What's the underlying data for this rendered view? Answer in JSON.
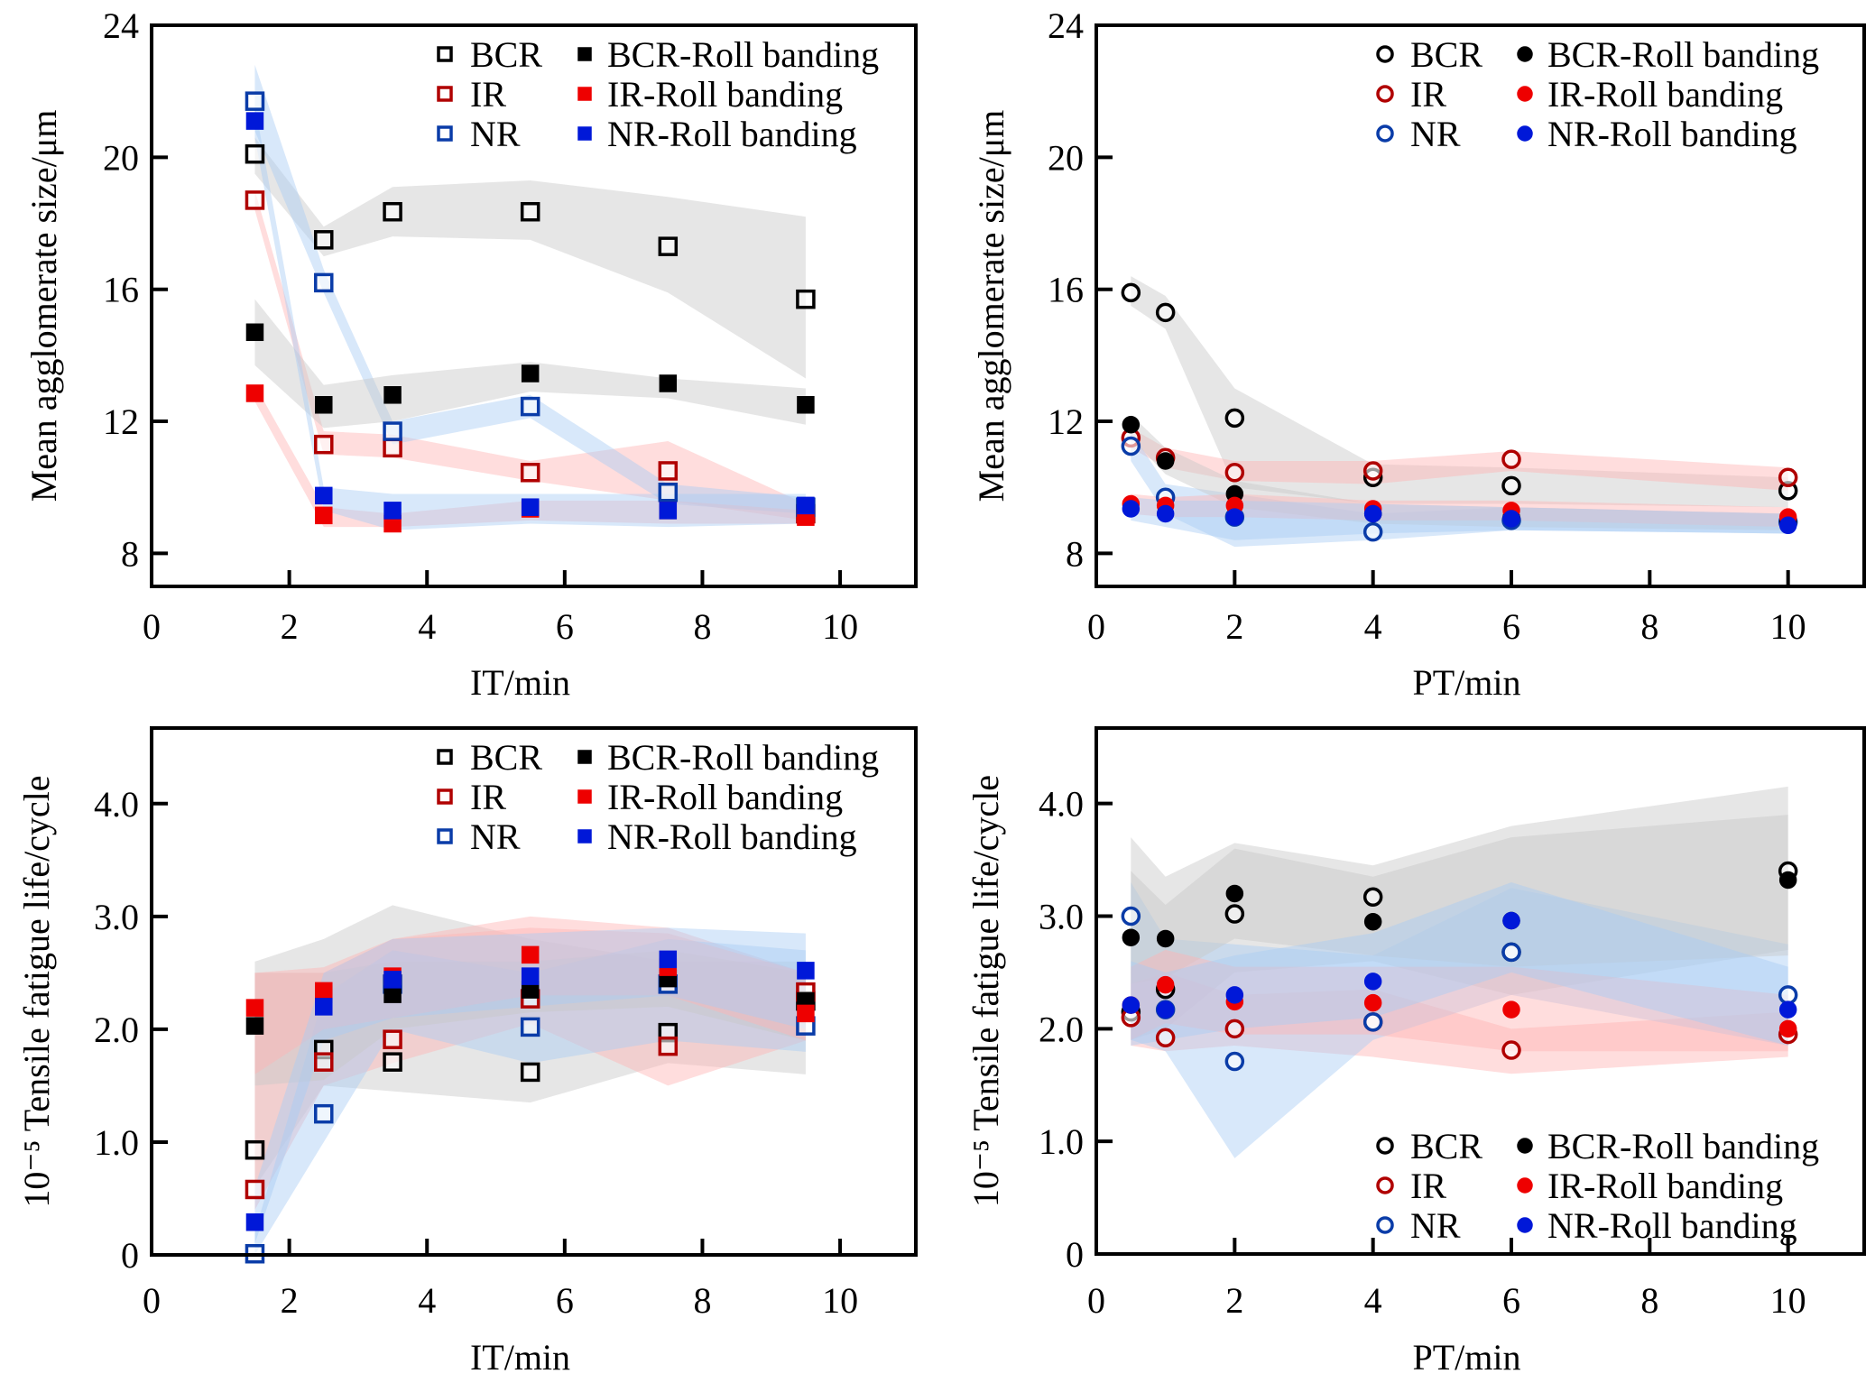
{
  "legend_labels": {
    "BCR": "BCR",
    "IR": "IR",
    "NR": "NR",
    "BCR-RB": "BCR-Roll banding",
    "IR-RB": "IR-Roll banding",
    "NR-RB": "NR-Roll banding"
  },
  "series_style": {
    "BCR": {
      "color": "#000000",
      "band": "#c8c8c8",
      "filled": false
    },
    "IR": {
      "color": "#b00000",
      "band": "#ffb4b4",
      "filled": false
    },
    "NR": {
      "color": "#0a3ca8",
      "band": "#a8cdf5",
      "filled": false
    },
    "BCR-RB": {
      "color": "#000000",
      "band": "#c8c8c8",
      "filled": true
    },
    "IR-RB": {
      "color": "#ee0000",
      "band": "#ffb4b4",
      "filled": true
    },
    "NR-RB": {
      "color": "#0018d8",
      "band": "#a8cdf5",
      "filled": true
    }
  },
  "chart_data": [
    {
      "id": "top-left",
      "type": "scatter",
      "marker": "square",
      "title": "",
      "xlabel": "IT/min",
      "ylabel": "Mean agglomerate size/μm",
      "xlim": [
        0,
        11.1
      ],
      "ylim": [
        7,
        24
      ],
      "xticks": [
        0,
        2,
        4,
        6,
        8,
        10
      ],
      "yticks": [
        8,
        12,
        16,
        20,
        24
      ],
      "ytick_labels": [
        "8",
        "12",
        "16",
        "20",
        "24"
      ],
      "legend_position": "top-right",
      "grid": false,
      "x": [
        1.5,
        2.5,
        3.5,
        5.5,
        7.5,
        9.5
      ],
      "series": [
        {
          "name": "BCR",
          "values": [
            20.1,
            17.5,
            18.35,
            18.35,
            17.3,
            15.7
          ],
          "band_low": [
            19.5,
            17.0,
            17.6,
            17.5,
            15.9,
            13.3
          ],
          "band_high": [
            20.6,
            17.9,
            19.1,
            19.3,
            18.8,
            18.2
          ]
        },
        {
          "name": "IR",
          "values": [
            18.7,
            11.3,
            11.2,
            10.45,
            10.5,
            9.2
          ],
          "band_low": [
            18.4,
            11.0,
            10.9,
            10.2,
            9.6,
            9.0
          ],
          "band_high": [
            19.0,
            11.7,
            11.6,
            10.8,
            11.4,
            9.5
          ]
        },
        {
          "name": "NR",
          "values": [
            21.7,
            16.2,
            11.7,
            12.45,
            9.85,
            9.4
          ],
          "band_low": [
            20.8,
            15.9,
            11.3,
            12.1,
            9.5,
            9.2
          ],
          "band_high": [
            22.8,
            16.6,
            12.0,
            12.8,
            10.1,
            9.7
          ]
        },
        {
          "name": "BCR-RB",
          "values": [
            14.7,
            12.5,
            12.8,
            13.45,
            13.15,
            12.5
          ],
          "band_low": [
            13.7,
            11.8,
            12.0,
            12.9,
            12.7,
            11.9
          ],
          "band_high": [
            15.7,
            13.1,
            13.4,
            13.8,
            13.3,
            13.0
          ]
        },
        {
          "name": "IR-RB",
          "values": [
            12.85,
            9.15,
            8.9,
            9.35,
            9.3,
            9.1
          ],
          "band_low": [
            12.6,
            8.8,
            8.8,
            9.0,
            8.9,
            8.9
          ],
          "band_high": [
            13.1,
            9.4,
            9.2,
            9.6,
            9.6,
            9.3
          ]
        },
        {
          "name": "NR-RB",
          "values": [
            21.1,
            9.75,
            9.3,
            9.4,
            9.3,
            9.45
          ],
          "band_low": [
            20.6,
            9.3,
            8.7,
            8.9,
            8.8,
            8.9
          ],
          "band_high": [
            21.6,
            10.0,
            9.8,
            9.8,
            9.8,
            9.8
          ]
        }
      ]
    },
    {
      "id": "top-right",
      "type": "scatter",
      "marker": "circle",
      "title": "",
      "xlabel": "PT/min",
      "ylabel": "Mean agglomerate size/μm",
      "xlim": [
        0,
        11.1
      ],
      "ylim": [
        7,
        24
      ],
      "xticks": [
        0,
        2,
        4,
        6,
        8,
        10
      ],
      "yticks": [
        8,
        12,
        16,
        20,
        24
      ],
      "ytick_labels": [
        "8",
        "12",
        "16",
        "20",
        "24"
      ],
      "legend_position": "top-right",
      "grid": false,
      "x": [
        0.5,
        1,
        2,
        4,
        6,
        10
      ],
      "series": [
        {
          "name": "BCR",
          "values": [
            15.9,
            15.3,
            12.1,
            10.3,
            10.05,
            9.9
          ],
          "band_low": [
            15.5,
            14.8,
            10.0,
            9.5,
            9.5,
            9.4
          ],
          "band_high": [
            16.4,
            15.8,
            13.0,
            10.7,
            10.6,
            10.3
          ]
        },
        {
          "name": "IR",
          "values": [
            11.5,
            10.9,
            10.45,
            10.5,
            10.85,
            10.3
          ],
          "band_low": [
            11.2,
            10.6,
            10.2,
            10.1,
            10.5,
            9.9
          ],
          "band_high": [
            11.8,
            11.2,
            10.8,
            10.8,
            11.1,
            10.6
          ]
        },
        {
          "name": "NR",
          "values": [
            11.25,
            9.7,
            9.1,
            8.65,
            9.0,
            8.95
          ],
          "band_low": [
            10.8,
            9.2,
            8.2,
            8.4,
            8.7,
            8.6
          ],
          "band_high": [
            11.7,
            10.1,
            9.8,
            9.2,
            9.4,
            9.2
          ]
        },
        {
          "name": "BCR-RB",
          "values": [
            11.9,
            10.8,
            9.8,
            9.2,
            9.1,
            8.95
          ],
          "band_low": [
            11.5,
            10.4,
            9.4,
            8.9,
            8.8,
            8.7
          ],
          "band_high": [
            12.2,
            11.2,
            10.2,
            9.5,
            9.4,
            9.2
          ]
        },
        {
          "name": "IR-RB",
          "values": [
            9.5,
            9.45,
            9.45,
            9.35,
            9.3,
            9.1
          ],
          "band_low": [
            9.2,
            9.1,
            9.1,
            9.0,
            9.0,
            8.8
          ],
          "band_high": [
            9.8,
            9.7,
            9.8,
            9.6,
            9.6,
            9.4
          ]
        },
        {
          "name": "NR-RB",
          "values": [
            9.35,
            9.2,
            9.1,
            9.2,
            9.05,
            8.85
          ],
          "band_low": [
            9.0,
            8.8,
            8.4,
            8.6,
            8.7,
            8.6
          ],
          "band_high": [
            9.7,
            9.6,
            9.6,
            9.5,
            9.4,
            9.2
          ]
        }
      ]
    },
    {
      "id": "bottom-left",
      "type": "scatter",
      "marker": "square",
      "title": "",
      "xlabel": "IT/min",
      "ylabel": "10⁻⁵ Tensile fatigue life/cycle",
      "xlim": [
        0,
        11.1
      ],
      "ylim": [
        0,
        4.67
      ],
      "xticks": [
        0,
        2,
        4,
        6,
        8,
        10
      ],
      "yticks": [
        0,
        1,
        2,
        3,
        4
      ],
      "ytick_labels": [
        "0",
        "1.0",
        "2.0",
        "3.0",
        "4.0"
      ],
      "legend_position": "top-right",
      "grid": false,
      "x": [
        1.5,
        2.5,
        3.5,
        5.5,
        7.5,
        9.5
      ],
      "series": [
        {
          "name": "BCR",
          "values": [
            0.93,
            1.82,
            1.71,
            1.62,
            1.97,
            2.25
          ],
          "band_low": [
            0.6,
            1.5,
            1.45,
            1.35,
            1.7,
            1.6
          ],
          "band_high": [
            2.6,
            2.8,
            3.1,
            2.8,
            2.6,
            2.6
          ]
        },
        {
          "name": "IR",
          "values": [
            0.58,
            1.71,
            1.91,
            2.27,
            1.85,
            2.33
          ],
          "band_low": [
            0.4,
            1.5,
            1.7,
            2.05,
            1.5,
            1.9
          ],
          "band_high": [
            2.5,
            2.5,
            2.8,
            3.0,
            2.9,
            2.5
          ]
        },
        {
          "name": "NR",
          "values": [
            0.01,
            1.25,
            2.4,
            2.02,
            2.4,
            2.03
          ],
          "band_low": [
            0.0,
            1.0,
            2.0,
            1.7,
            1.9,
            1.8
          ],
          "band_high": [
            0.2,
            2.3,
            2.7,
            2.5,
            2.8,
            2.7
          ]
        },
        {
          "name": "BCR-RB",
          "values": [
            2.03,
            2.31,
            2.31,
            2.35,
            2.45,
            2.25
          ],
          "band_low": [
            1.5,
            1.55,
            2.0,
            2.15,
            2.2,
            1.9
          ],
          "band_high": [
            2.5,
            2.5,
            2.6,
            2.6,
            2.7,
            2.5
          ]
        },
        {
          "name": "IR-RB",
          "values": [
            2.19,
            2.34,
            2.47,
            2.66,
            2.55,
            2.14
          ],
          "band_low": [
            1.6,
            2.0,
            2.1,
            2.3,
            2.3,
            1.9
          ],
          "band_high": [
            2.5,
            2.55,
            2.8,
            2.9,
            2.85,
            2.5
          ]
        },
        {
          "name": "NR-RB",
          "values": [
            0.29,
            2.2,
            2.44,
            2.47,
            2.62,
            2.52
          ],
          "band_low": [
            0.1,
            1.9,
            2.1,
            2.2,
            2.3,
            2.0
          ],
          "band_high": [
            0.6,
            2.5,
            2.8,
            2.85,
            2.9,
            2.85
          ]
        }
      ]
    },
    {
      "id": "bottom-right",
      "type": "scatter",
      "marker": "circle",
      "title": "",
      "xlabel": "PT/min",
      "ylabel": "10⁻⁵ Tensile fatigue life/cycle",
      "xlim": [
        0,
        11.1
      ],
      "ylim": [
        0,
        4.67
      ],
      "xticks": [
        0,
        2,
        4,
        6,
        8,
        10
      ],
      "yticks": [
        0,
        1,
        2,
        3,
        4
      ],
      "ytick_labels": [
        "0",
        "1.0",
        "2.0",
        "3.0",
        "4.0"
      ],
      "legend_position": "bottom-right",
      "grid": false,
      "x": [
        0.5,
        1,
        2,
        4,
        6,
        10
      ],
      "series": [
        {
          "name": "BCR",
          "values": [
            2.15,
            2.35,
            3.02,
            3.17,
            2.68,
            3.4
          ],
          "band_low": [
            1.9,
            2.0,
            2.5,
            2.6,
            2.3,
            2.7
          ],
          "band_high": [
            3.7,
            3.35,
            3.65,
            3.45,
            3.8,
            4.15
          ]
        },
        {
          "name": "IR",
          "values": [
            2.1,
            1.92,
            2.0,
            2.06,
            1.81,
            1.95
          ],
          "band_low": [
            1.85,
            1.8,
            1.85,
            1.75,
            1.6,
            1.75
          ],
          "band_high": [
            2.4,
            2.5,
            2.3,
            2.35,
            2.0,
            2.15
          ]
        },
        {
          "name": "NR",
          "values": [
            3.0,
            2.17,
            1.71,
            2.06,
            2.68,
            2.3
          ],
          "band_low": [
            1.9,
            1.8,
            0.85,
            1.9,
            2.3,
            1.85
          ],
          "band_high": [
            3.3,
            2.8,
            2.75,
            2.65,
            3.25,
            2.75
          ]
        },
        {
          "name": "BCR-RB",
          "values": [
            2.81,
            2.8,
            3.2,
            2.95,
            2.96,
            3.32
          ],
          "band_low": [
            2.4,
            2.45,
            2.8,
            2.65,
            2.55,
            2.65
          ],
          "band_high": [
            3.4,
            3.1,
            3.6,
            3.35,
            3.7,
            3.9
          ]
        },
        {
          "name": "IR-RB",
          "values": [
            2.21,
            2.39,
            2.24,
            2.23,
            2.17,
            2.0
          ],
          "band_low": [
            1.9,
            2.05,
            1.95,
            1.95,
            1.8,
            1.8
          ],
          "band_high": [
            2.55,
            2.7,
            2.55,
            2.55,
            2.55,
            2.3
          ]
        },
        {
          "name": "NR-RB",
          "values": [
            2.21,
            2.17,
            2.3,
            2.42,
            2.96,
            2.17
          ],
          "band_low": [
            1.85,
            1.9,
            2.0,
            2.1,
            2.5,
            1.85
          ],
          "band_high": [
            2.6,
            2.5,
            2.65,
            2.85,
            3.3,
            2.55
          ]
        }
      ]
    }
  ]
}
